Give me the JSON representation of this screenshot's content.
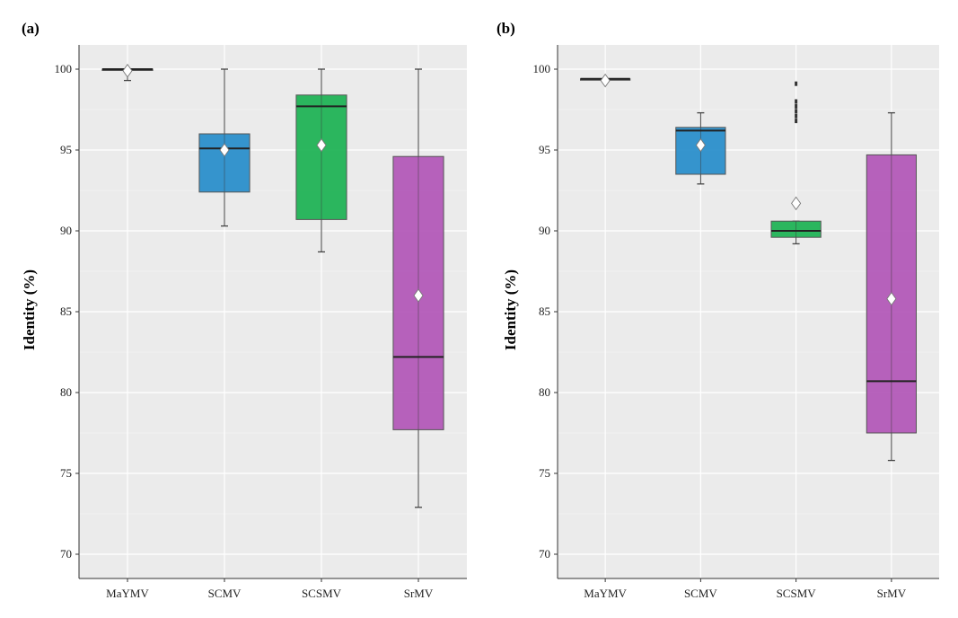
{
  "chart_data": [
    {
      "type": "box",
      "panel_label": "(a)",
      "ylabel": "Identity (%)",
      "xlabel": "",
      "ylim": [
        68.5,
        101.5
      ],
      "yticks": [
        70,
        75,
        80,
        85,
        90,
        95,
        100
      ],
      "grid": true,
      "categories": [
        "MaYMV",
        "SCMV",
        "SCSMV",
        "SrMV"
      ],
      "boxes": [
        {
          "name": "MaYMV",
          "color": "#4a4a4a",
          "whisker_low": 99.3,
          "q1": 100.0,
          "median": 100.0,
          "q3": 100.0,
          "whisker_high": 100.0,
          "mean": 99.9,
          "outliers": []
        },
        {
          "name": "SCMV",
          "color": "#2b8fcb",
          "whisker_low": 90.3,
          "q1": 92.4,
          "median": 95.1,
          "q3": 96.0,
          "whisker_high": 100.0,
          "mean": 95.0,
          "outliers": []
        },
        {
          "name": "SCSMV",
          "color": "#21b356",
          "whisker_low": 88.7,
          "q1": 90.7,
          "median": 97.7,
          "q3": 98.4,
          "whisker_high": 100.0,
          "mean": 95.3,
          "outliers": []
        },
        {
          "name": "SrMV",
          "color": "#b35ab8",
          "whisker_low": 72.9,
          "q1": 77.7,
          "median": 82.2,
          "q3": 94.6,
          "whisker_high": 100.0,
          "mean": 86.0,
          "outliers": []
        }
      ]
    },
    {
      "type": "box",
      "panel_label": "(b)",
      "ylabel": "Identity (%)",
      "xlabel": "",
      "ylim": [
        68.5,
        101.5
      ],
      "yticks": [
        70,
        75,
        80,
        85,
        90,
        95,
        100
      ],
      "grid": true,
      "categories": [
        "MaYMV",
        "SCMV",
        "SCSMV",
        "SrMV"
      ],
      "boxes": [
        {
          "name": "MaYMV",
          "color": "#4a4a4a",
          "whisker_low": 99.4,
          "q1": 99.4,
          "median": 99.4,
          "q3": 99.4,
          "whisker_high": 99.4,
          "mean": 99.3,
          "outliers": []
        },
        {
          "name": "SCMV",
          "color": "#2b8fcb",
          "whisker_low": 92.9,
          "q1": 93.5,
          "median": 96.2,
          "q3": 96.4,
          "whisker_high": 97.3,
          "mean": 95.3,
          "outliers": []
        },
        {
          "name": "SCSMV",
          "color": "#21b356",
          "whisker_low": 89.2,
          "q1": 89.6,
          "median": 90.0,
          "q3": 90.6,
          "whisker_high": 90.6,
          "mean": 91.7,
          "outliers": [
            96.8,
            97.1,
            97.4,
            97.7,
            98.0,
            99.1
          ]
        },
        {
          "name": "SrMV",
          "color": "#b35ab8",
          "whisker_low": 75.8,
          "q1": 77.5,
          "median": 80.7,
          "q3": 94.7,
          "whisker_high": 97.3,
          "mean": 85.8,
          "outliers": []
        }
      ]
    }
  ]
}
